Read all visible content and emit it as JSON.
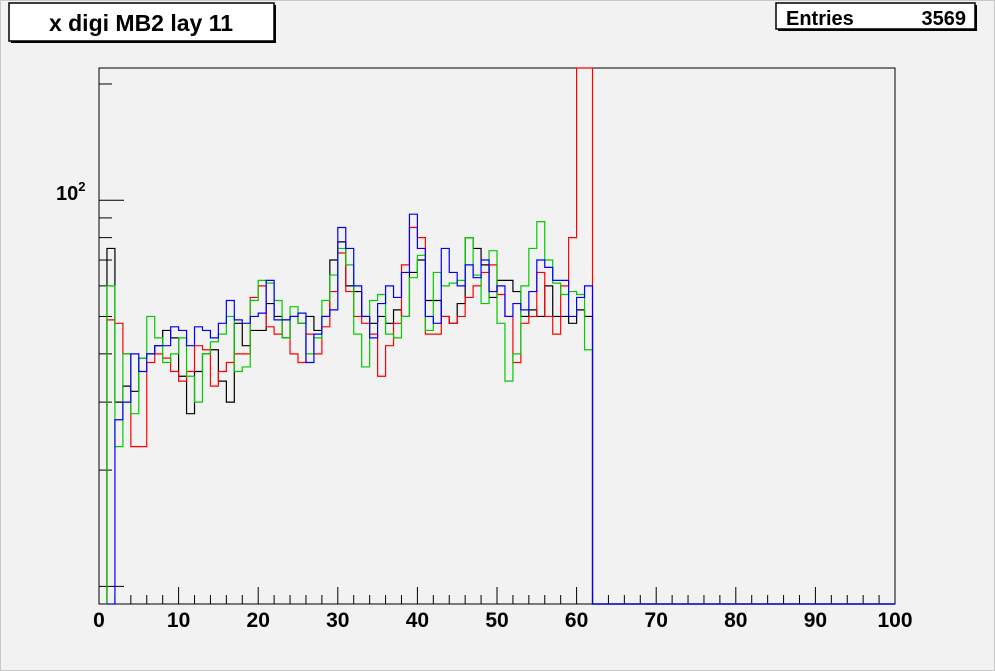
{
  "chart_data": {
    "type": "line",
    "style": "step-histogram",
    "title": "x digi MB2 lay 11",
    "stats": {
      "label": "Entries",
      "value": "3569"
    },
    "x_axis": {
      "range": [
        0,
        100
      ],
      "tick_labels": [
        "0",
        "10",
        "20",
        "30",
        "40",
        "50",
        "60",
        "70",
        "80",
        "90",
        "100"
      ]
    },
    "y_axis": {
      "scale": "log",
      "range": [
        9,
        220
      ],
      "tick_label_base": "10",
      "tick_label_exp": "2"
    },
    "bin_width": 1,
    "x_start": 1,
    "series": [
      {
        "color": "#000000",
        "values": [
          75,
          30,
          33,
          32,
          39,
          40,
          42,
          46,
          44,
          35,
          28,
          36,
          40,
          41,
          34,
          30,
          48,
          42,
          46,
          46,
          54,
          50,
          44,
          50,
          48,
          50,
          46,
          50,
          70,
          78,
          60,
          58,
          50,
          48,
          50,
          48,
          52,
          50,
          65,
          70,
          55,
          55,
          50,
          48,
          54,
          80,
          75,
          68,
          56,
          62,
          62,
          58,
          50,
          52,
          50,
          60,
          50,
          50,
          48,
          52,
          50,
          0
        ]
      },
      {
        "color": "#ff0000",
        "values": [
          49,
          48,
          40,
          23,
          23,
          38,
          40,
          39,
          36,
          34,
          36,
          42,
          41,
          33,
          36,
          38,
          40,
          40,
          56,
          60,
          47,
          45,
          49,
          40,
          38,
          45,
          40,
          47,
          58,
          73,
          58,
          50,
          48,
          45,
          35,
          42,
          48,
          68,
          85,
          80,
          45,
          45,
          50,
          48,
          50,
          56,
          60,
          65,
          68,
          57,
          50,
          38,
          48,
          50,
          65,
          50,
          45,
          60,
          80,
          220,
          220,
          0
        ]
      },
      {
        "color": "#00cc00",
        "values": [
          60,
          23,
          40,
          28,
          39,
          50,
          44,
          38,
          40,
          44,
          35,
          30,
          40,
          43,
          45,
          50,
          36,
          37,
          55,
          62,
          61,
          55,
          44,
          53,
          48,
          40,
          44,
          55,
          64,
          75,
          68,
          45,
          37,
          55,
          57,
          45,
          44,
          50,
          63,
          72,
          46,
          65,
          60,
          61,
          62,
          80,
          64,
          54,
          74,
          48,
          34,
          40,
          60,
          75,
          88,
          70,
          61,
          57,
          58,
          57,
          41,
          0
        ]
      },
      {
        "color": "#0000ff",
        "values": [
          0,
          27,
          30,
          40,
          36,
          40,
          42,
          42,
          47,
          46,
          42,
          47,
          46,
          44,
          48,
          55,
          49,
          48,
          50,
          51,
          62,
          49,
          49,
          50,
          51,
          38,
          45,
          50,
          52,
          85,
          75,
          60,
          50,
          44,
          54,
          60,
          56,
          65,
          92,
          75,
          50,
          48,
          75,
          65,
          60,
          68,
          63,
          70,
          58,
          60,
          50,
          54,
          52,
          58,
          70,
          67,
          62,
          62,
          50,
          56,
          60,
          0
        ]
      }
    ]
  }
}
